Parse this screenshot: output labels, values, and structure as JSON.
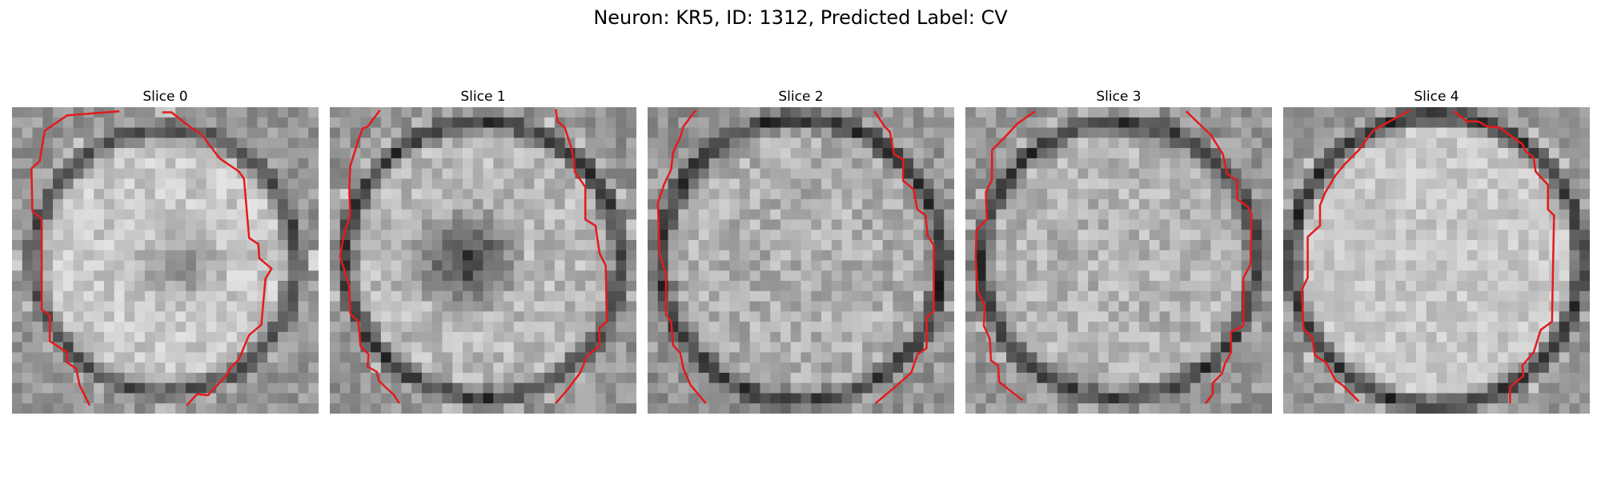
{
  "figure": {
    "title": "Neuron: KR5, ID: 1312, Predicted Label: CV"
  },
  "panels": [
    {
      "title": "Slice 0"
    },
    {
      "title": "Slice 1"
    },
    {
      "title": "Slice 2"
    },
    {
      "title": "Slice 3"
    },
    {
      "title": "Slice 4"
    }
  ],
  "colors": {
    "contour": "#e41a1c",
    "background": "#ffffff"
  },
  "image": {
    "type": "grayscale electron microscopy slices",
    "grid": "30x30 pixels",
    "overlay": "red contour line"
  }
}
